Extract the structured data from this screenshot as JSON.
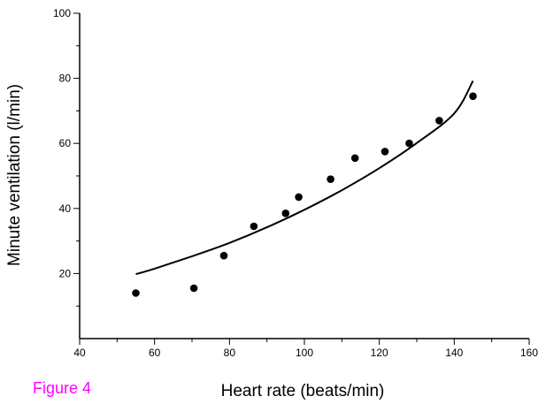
{
  "figure_label": "Figure 4",
  "colors": {
    "figure_label": "#ff00ff",
    "axes": "#000000",
    "points": "#000000",
    "curve": "#000000"
  },
  "chart_data": {
    "type": "scatter",
    "xlabel": "Heart rate (beats/min)",
    "ylabel": "Minute ventilation (l/min)",
    "xlim": [
      40,
      160
    ],
    "ylim": [
      0,
      100
    ],
    "x_ticks": [
      40,
      60,
      80,
      100,
      120,
      140,
      160
    ],
    "y_ticks": [
      20,
      40,
      60,
      80,
      100
    ],
    "grid": false,
    "series": [
      {
        "type": "scatter",
        "x": [
          55,
          70.5,
          78.5,
          86.5,
          95,
          98.5,
          107,
          113.5,
          121.5,
          128,
          136,
          145
        ],
        "y": [
          14,
          15.5,
          25.5,
          34.5,
          38.5,
          43.5,
          49,
          55.5,
          57.5,
          60,
          67,
          74.5
        ]
      },
      {
        "type": "line",
        "x": [
          55,
          60,
          70,
          80,
          90,
          100,
          110,
          120,
          130,
          140,
          145
        ],
        "y": [
          19.8,
          21.5,
          25.3,
          29.4,
          34.2,
          39.6,
          45.6,
          52.4,
          60.1,
          69.2,
          79.2
        ]
      }
    ]
  }
}
